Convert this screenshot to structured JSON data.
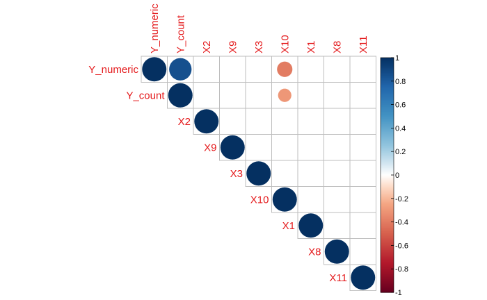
{
  "chart_data": {
    "type": "heatmap",
    "style": "corrplot-circle-upper",
    "variables": [
      "Y_numeric",
      "Y_count",
      "X2",
      "X9",
      "X3",
      "X10",
      "X1",
      "X8",
      "X11"
    ],
    "cells": [
      {
        "row": "Y_numeric",
        "col": "Y_numeric",
        "value": 1.0
      },
      {
        "row": "Y_numeric",
        "col": "Y_count",
        "value": 0.85
      },
      {
        "row": "Y_numeric",
        "col": "X10",
        "value": -0.4
      },
      {
        "row": "Y_count",
        "col": "Y_count",
        "value": 1.0
      },
      {
        "row": "Y_count",
        "col": "X10",
        "value": -0.3
      },
      {
        "row": "X2",
        "col": "X2",
        "value": 1.0
      },
      {
        "row": "X9",
        "col": "X9",
        "value": 1.0
      },
      {
        "row": "X3",
        "col": "X3",
        "value": 1.0
      },
      {
        "row": "X10",
        "col": "X10",
        "value": 1.0
      },
      {
        "row": "X1",
        "col": "X1",
        "value": 1.0
      },
      {
        "row": "X8",
        "col": "X8",
        "value": 1.0
      },
      {
        "row": "X11",
        "col": "X11",
        "value": 1.0
      }
    ],
    "colorbar": {
      "ticks": [
        "1",
        "0.8",
        "0.6",
        "0.4",
        "0.2",
        "0",
        "-0.2",
        "-0.4",
        "-0.6",
        "-0.8",
        "-1"
      ],
      "range": [
        -1,
        1
      ]
    },
    "colors": {
      "label": "#e41a1c",
      "grid": "#bebebe",
      "positive_strong": "#053061",
      "negative_strong": "#67001f"
    }
  }
}
